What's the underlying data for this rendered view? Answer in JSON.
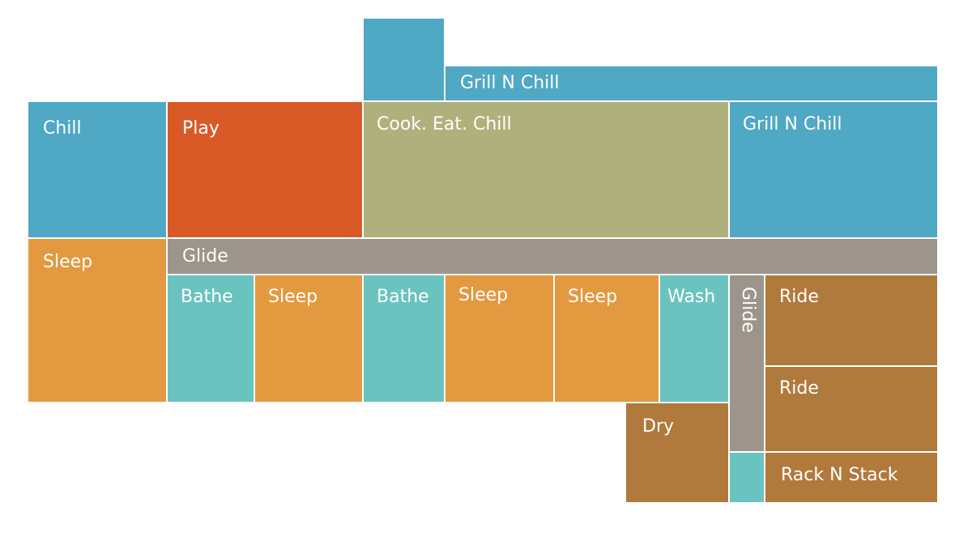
{
  "rooms": [
    {
      "label": "Grill N Chill"
    },
    {
      "label": "Chill"
    },
    {
      "label": "Play"
    },
    {
      "label": "Cook. Eat. Chill"
    },
    {
      "label": "Grill N Chill"
    },
    {
      "label": "Sleep"
    },
    {
      "label": "Glide"
    },
    {
      "label": "Bathe"
    },
    {
      "label": "Sleep"
    },
    {
      "label": "Bathe"
    },
    {
      "label": "Sleep"
    },
    {
      "label": "Sleep"
    },
    {
      "label": "Wash"
    },
    {
      "label": "Glide"
    },
    {
      "label": "Ride"
    },
    {
      "label": "Ride"
    },
    {
      "label": "Dry"
    },
    {
      "label": "Rack N Stack"
    }
  ]
}
